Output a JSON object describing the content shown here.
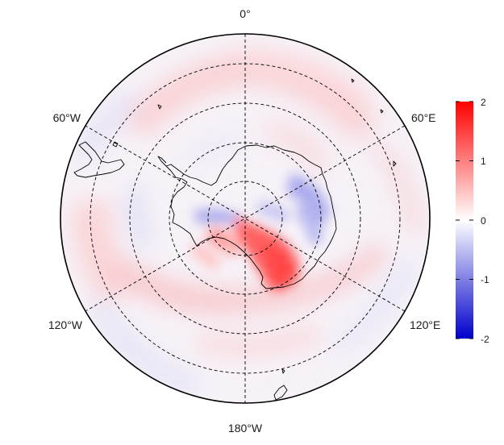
{
  "map": {
    "projection": "south-polar-stereographic",
    "longitude_labels": {
      "top": "0°",
      "upper_right": "60°E",
      "lower_right": "120°E",
      "bottom": "180°W",
      "lower_left": "120°W",
      "upper_left": "60°W"
    },
    "meridian_spacing_deg": 60,
    "latitude_circles": 4,
    "gridline_style": "dashed"
  },
  "colorbar": {
    "ticks": [
      "2",
      "1",
      "0",
      "-1",
      "-2"
    ],
    "range": [
      -2,
      2
    ],
    "colors": {
      "low": "#0000cc",
      "mid": "#ffffff",
      "high": "#ff0000"
    }
  },
  "colors": {
    "outline": "#000000",
    "coastline": "#000000",
    "positive": "#ff0000",
    "negative": "#0000cc",
    "neutral": "#ffffff"
  }
}
